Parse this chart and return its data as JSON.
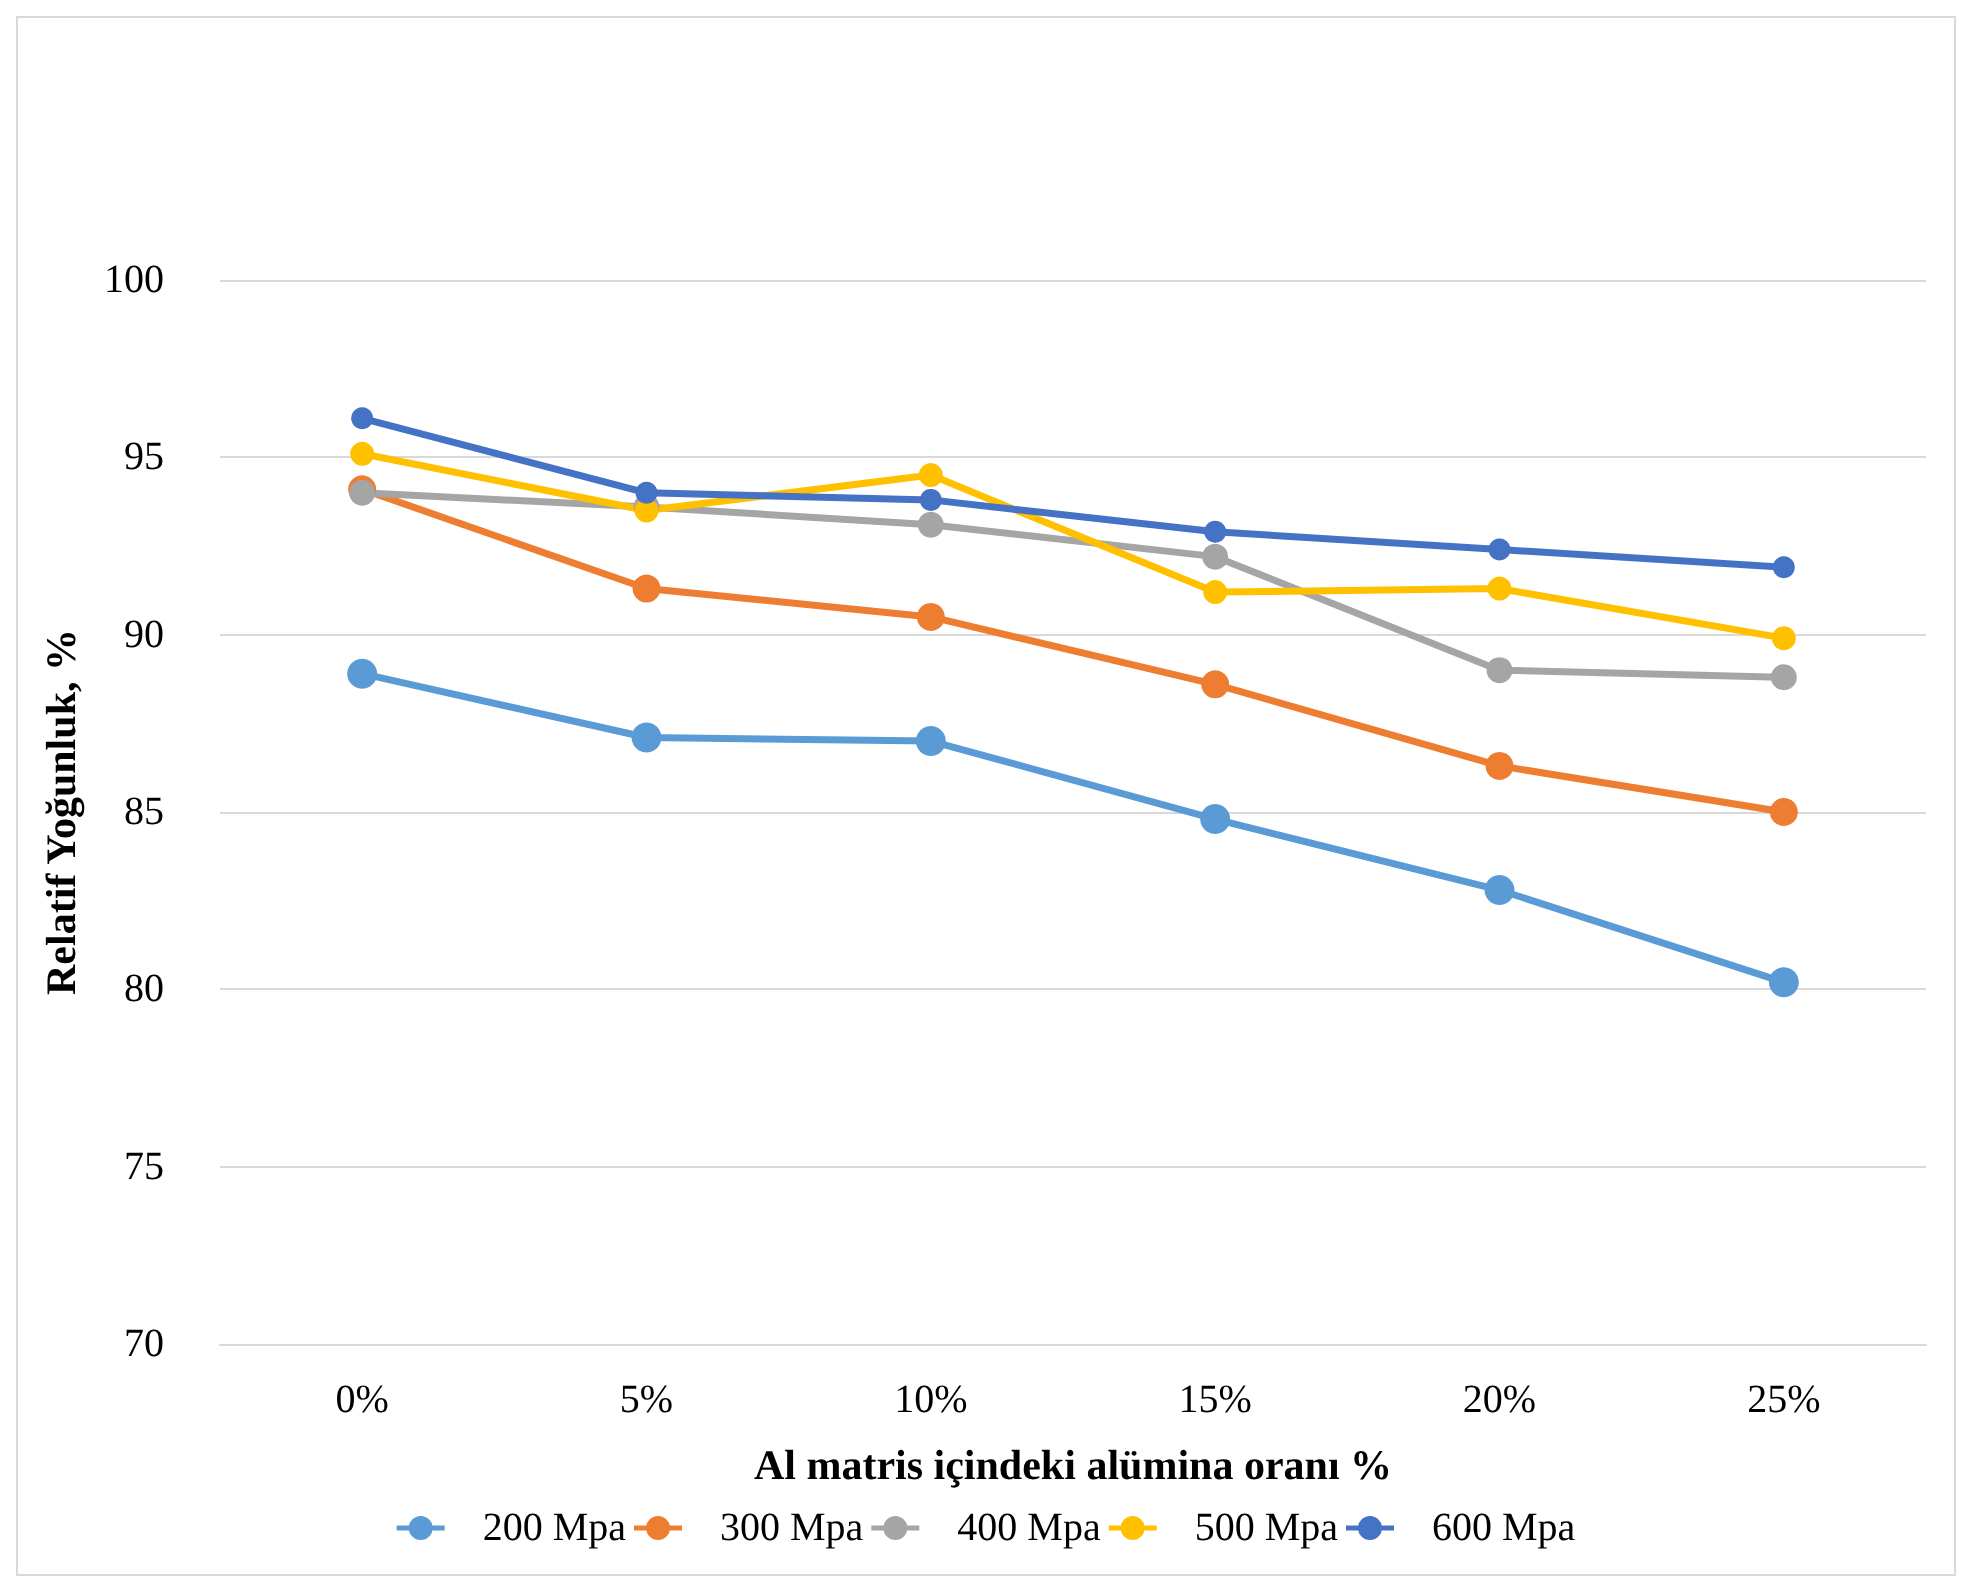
{
  "chart_data": {
    "type": "line",
    "xlabel": "Al matris içindeki alümina oranı %",
    "ylabel": "Relatif Yoğunluk, %",
    "categories": [
      "0%",
      "5%",
      "10%",
      "15%",
      "20%",
      "25%"
    ],
    "series": [
      {
        "name": "200 Mpa",
        "color": "#5b9bd5",
        "values": [
          88.9,
          87.1,
          87.0,
          84.8,
          82.8,
          80.2
        ]
      },
      {
        "name": "300 Mpa",
        "color": "#ed7d31",
        "values": [
          94.1,
          91.3,
          90.5,
          88.6,
          86.3,
          85.0
        ]
      },
      {
        "name": "400 Mpa",
        "color": "#a5a5a5",
        "values": [
          94.0,
          93.6,
          93.1,
          92.2,
          89.0,
          88.8
        ]
      },
      {
        "name": "500 Mpa",
        "color": "#ffc000",
        "values": [
          95.1,
          93.5,
          94.5,
          91.2,
          91.3,
          89.9
        ]
      },
      {
        "name": "600 Mpa",
        "color": "#4472c4",
        "values": [
          96.1,
          94.0,
          93.8,
          92.9,
          92.4,
          91.9
        ]
      }
    ],
    "ylim": [
      70,
      100
    ],
    "yticks": [
      70,
      75,
      80,
      85,
      90,
      95,
      100
    ],
    "grid": "y",
    "legend": "bottom",
    "marker": "circle",
    "line_style": "solid"
  }
}
